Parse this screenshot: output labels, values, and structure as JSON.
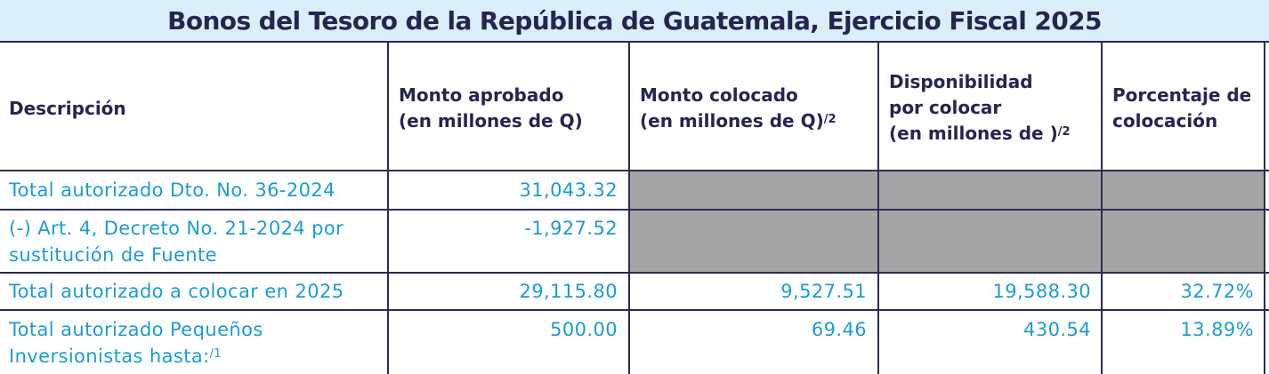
{
  "title": "Bonos del Tesoro de la República de Guatemala, Ejercicio Fiscal 2025",
  "colors": {
    "title_band": "#dbeefb",
    "header_text": "#242551",
    "body_text": "#1b9cd3",
    "rule": "#2b2d4e",
    "shade": "#a5a5a5"
  },
  "headers": {
    "description": "Descripción",
    "approved": {
      "line1": "Monto aprobado",
      "line2": "(en millones de Q)"
    },
    "placed": {
      "line1": "Monto colocado",
      "line2": "(en millones de Q)",
      "sup": "/2"
    },
    "available": {
      "line1": "Disponibilidad",
      "line2": "por colocar",
      "line3": "(en millones de )",
      "sup": "/2"
    },
    "percent": {
      "line1": "Porcentaje de",
      "line2": "colocación"
    }
  },
  "rows": [
    {
      "label": "Total autorizado Dto. No. 36-2024",
      "approved": "31,043.32"
    },
    {
      "label_line1": "(-) Art. 4, Decreto No. 21-2024 por",
      "label_line2": "sustitución de Fuente",
      "approved": "-1,927.52"
    },
    {
      "label": "Total autorizado a colocar en 2025",
      "approved": "29,115.80",
      "placed": "9,527.51",
      "available": "19,588.30",
      "percent": "32.72%"
    },
    {
      "label_line1": "Total autorizado Pequeños",
      "label_line2": "Inversionistas hasta:",
      "sup": "/1",
      "approved": "500.00",
      "placed": "69.46",
      "available": "430.54",
      "percent": "13.89%"
    }
  ]
}
